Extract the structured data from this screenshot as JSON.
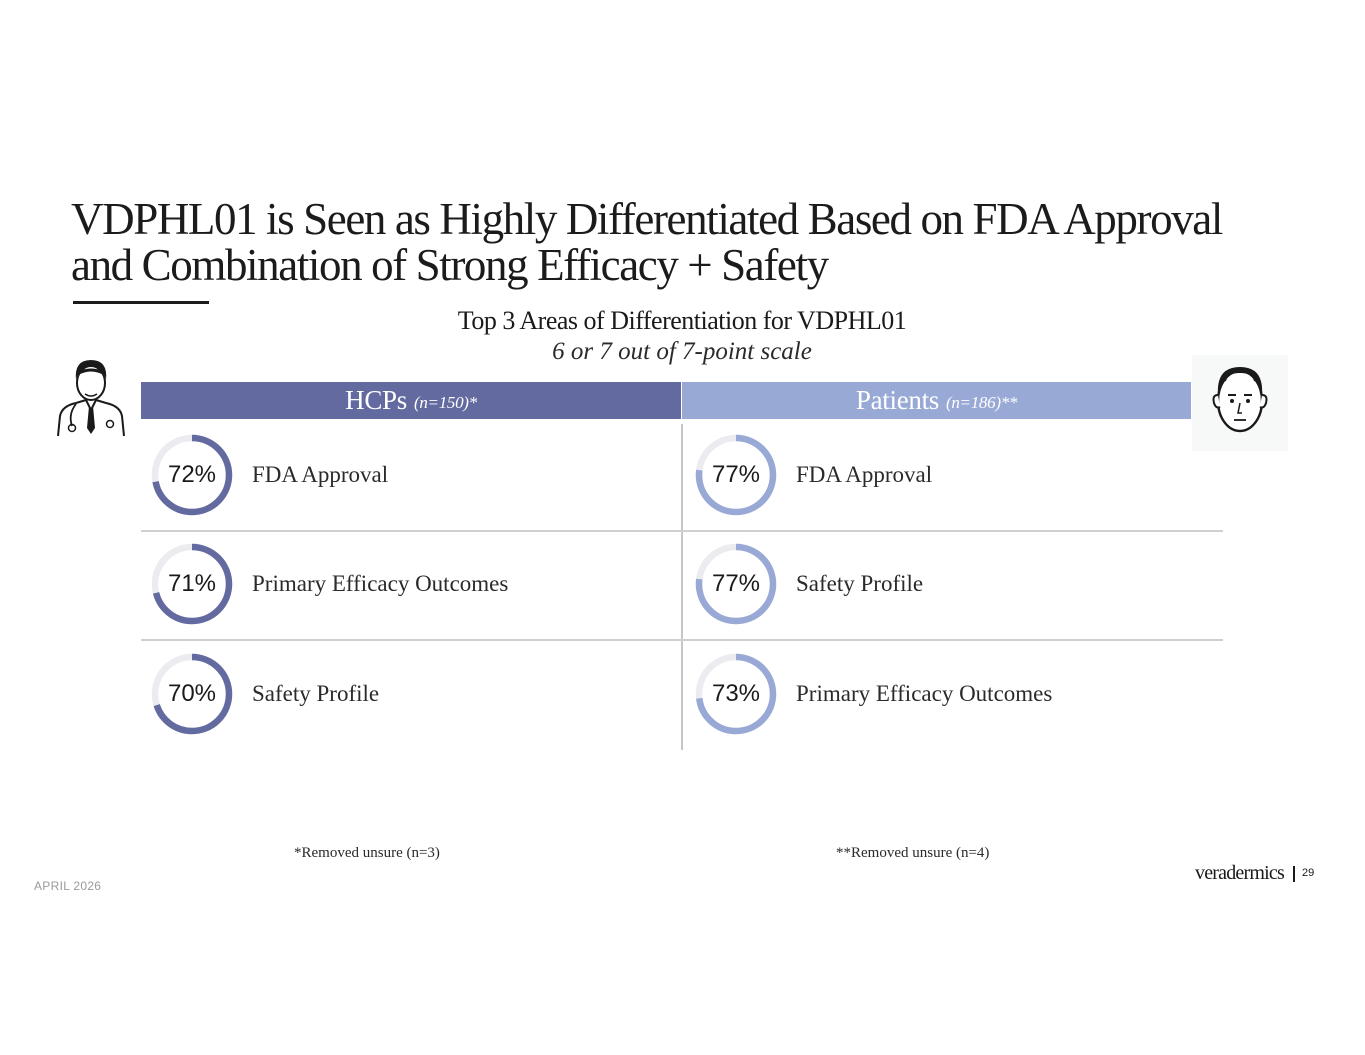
{
  "slide": {
    "title_line1": "VDPHL01 is Seen as Highly Differentiated Based on FDA Approval",
    "title_line2": "and Combination of Strong Efficacy + Safety",
    "date": "APRIL 2026",
    "brand": "veradermics",
    "page_number": "29"
  },
  "chart_data": {
    "type": "table",
    "title": "Top 3 Areas of Differentiation for VDPHL01",
    "subtitle": "6 or 7 out of 7-point scale",
    "series": [
      {
        "name": "HCPs",
        "n_label": "(n=150)*",
        "color": "#636aa0",
        "footnote": "*Removed unsure (n=3)",
        "items": [
          {
            "label": "FDA Approval",
            "value": 72
          },
          {
            "label": "Primary Efficacy Outcomes",
            "value": 71
          },
          {
            "label": "Safety Profile",
            "value": 70
          }
        ]
      },
      {
        "name": "Patients",
        "n_label": "(n=186)**",
        "color": "#98a9d6",
        "footnote": "**Removed unsure (n=4)",
        "items": [
          {
            "label": "FDA Approval",
            "value": 77
          },
          {
            "label": "Safety Profile",
            "value": 77
          },
          {
            "label": "Primary Efficacy Outcomes",
            "value": 73
          }
        ]
      }
    ],
    "ring_track_color": "#ebebf0"
  }
}
